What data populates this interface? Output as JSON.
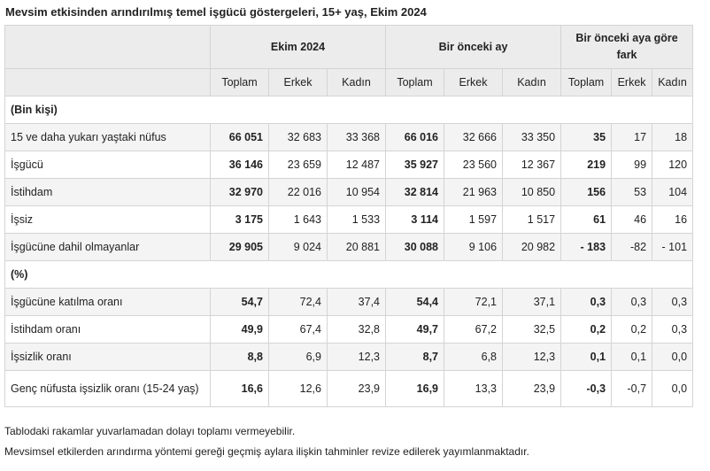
{
  "title": "Mevsim etkisinden arındırılmış temel işgücü göstergeleri, 15+ yaş, Ekim 2024",
  "header": {
    "groups": [
      "Ekim 2024",
      "Bir önceki ay",
      "Bir önceki aya göre fark"
    ],
    "cols": [
      "Toplam",
      "Erkek",
      "Kadın",
      "Toplam",
      "Erkek",
      "Kadın",
      "Toplam",
      "Erkek",
      "Kadın"
    ]
  },
  "section1": "(Bin kişi)",
  "section2": "(%)",
  "rows1": [
    {
      "label": "15 ve daha yukarı yaştaki nüfus",
      "v": [
        "66 051",
        "32 683",
        "33 368",
        "66 016",
        "32 666",
        "33 350",
        "35",
        "17",
        "18"
      ]
    },
    {
      "label": "İşgücü",
      "v": [
        "36 146",
        "23 659",
        "12 487",
        "35 927",
        "23 560",
        "12 367",
        "219",
        "99",
        "120"
      ]
    },
    {
      "label": "İstihdam",
      "v": [
        "32 970",
        "22 016",
        "10 954",
        "32 814",
        "21 963",
        "10 850",
        "156",
        "53",
        "104"
      ]
    },
    {
      "label": "İşsiz",
      "v": [
        "3 175",
        "1 643",
        "1 533",
        "3 114",
        "1 597",
        "1 517",
        "61",
        "46",
        "16"
      ]
    },
    {
      "label": "İşgücüne dahil olmayanlar",
      "v": [
        "29 905",
        "9 024",
        "20 881",
        "30 088",
        "9 106",
        "20 982",
        "- 183",
        "-82",
        "- 101"
      ]
    }
  ],
  "rows2": [
    {
      "label": "İşgücüne katılma oranı",
      "v": [
        "54,7",
        "72,4",
        "37,4",
        "54,4",
        "72,1",
        "37,1",
        "0,3",
        "0,3",
        "0,3"
      ]
    },
    {
      "label": "İstihdam oranı",
      "v": [
        "49,9",
        "67,4",
        "32,8",
        "49,7",
        "67,2",
        "32,5",
        "0,2",
        "0,2",
        "0,3"
      ]
    },
    {
      "label": "İşsizlik oranı",
      "v": [
        "8,8",
        "6,9",
        "12,3",
        "8,7",
        "6,8",
        "12,3",
        "0,1",
        "0,1",
        "0,0"
      ]
    },
    {
      "label": "Genç nüfusta işsizlik oranı (15-24 yaş)",
      "v": [
        "16,6",
        "12,6",
        "23,9",
        "16,9",
        "13,3",
        "23,9",
        "-0,3",
        "-0,7",
        "0,0"
      ]
    }
  ],
  "notes": [
    "Tablodaki rakamlar yuvarlamadan dolayı toplamı vermeyebilir.",
    "Mevsimsel etkilerden arındırma yöntemi gereği geçmiş aylara ilişkin tahminler revize edilerek yayımlanmaktadır."
  ]
}
